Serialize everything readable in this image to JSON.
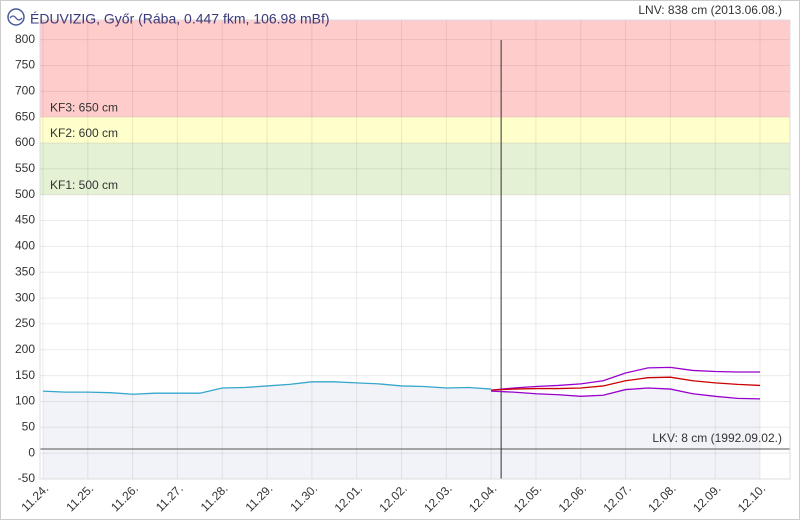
{
  "chart_data": {
    "type": "line",
    "title": "ÉDUVIZIG, Győr (Rába, 0.447 fkm, 106.98 mBf)",
    "categories": [
      "11.24.",
      null,
      "11.25.",
      null,
      "11.26.",
      null,
      "11.27.",
      null,
      "11.28.",
      null,
      "11.29.",
      null,
      "11.30.",
      null,
      "12.01.",
      null,
      "12.02.",
      null,
      "12.03.",
      null,
      "12.04.",
      null,
      "12.05.",
      null,
      "12.06.",
      null,
      "12.07.",
      null,
      "12.08.",
      null,
      "12.09.",
      null,
      "12.10."
    ],
    "series": [
      {
        "color": "#35a6cc",
        "fill": true,
        "values": [
          120,
          118,
          118,
          117,
          114,
          116,
          116,
          116,
          126,
          127,
          130,
          133,
          138,
          138,
          136,
          134,
          130,
          129,
          126,
          127,
          124,
          null,
          null,
          null,
          null,
          null,
          null,
          null,
          null,
          null,
          null,
          null,
          null
        ]
      },
      {
        "color": "#9900cc",
        "fill": false,
        "values": [
          null,
          null,
          null,
          null,
          null,
          null,
          null,
          null,
          null,
          null,
          null,
          null,
          null,
          null,
          null,
          null,
          null,
          null,
          null,
          null,
          122,
          126,
          129,
          131,
          134,
          140,
          155,
          165,
          166,
          160,
          158,
          157,
          157
        ]
      },
      {
        "color": "#cc0000",
        "fill": false,
        "values": [
          null,
          null,
          null,
          null,
          null,
          null,
          null,
          null,
          null,
          null,
          null,
          null,
          null,
          null,
          null,
          null,
          null,
          null,
          null,
          null,
          122,
          124,
          125,
          125,
          126,
          130,
          140,
          146,
          147,
          140,
          136,
          133,
          131
        ]
      },
      {
        "color": "#9900cc",
        "fill": true,
        "values": [
          null,
          null,
          null,
          null,
          null,
          null,
          null,
          null,
          null,
          null,
          null,
          null,
          null,
          null,
          null,
          null,
          null,
          null,
          null,
          null,
          120,
          118,
          115,
          113,
          110,
          112,
          123,
          126,
          124,
          115,
          110,
          106,
          105
        ]
      }
    ],
    "zones": [
      {
        "label": "KF3: 650 cm",
        "from": 650,
        "to": 838,
        "color": "#ffcccc"
      },
      {
        "label": "KF2: 600 cm",
        "from": 600,
        "to": 650,
        "color": "#ffffcc"
      },
      {
        "label": "KF1: 500 cm",
        "from": 500,
        "to": 600,
        "color": "#e4f1d4"
      }
    ],
    "lnv": {
      "label": "LNV: 838 cm (2013.06.08.)",
      "value": 838
    },
    "lkv": {
      "label": "LKV: 8 cm (1992.09.02.)",
      "value": 8
    },
    "ylim": [
      -50,
      838
    ],
    "yticks": [
      -50,
      0,
      50,
      100,
      150,
      200,
      250,
      300,
      350,
      400,
      450,
      500,
      550,
      600,
      650,
      700,
      750,
      800
    ],
    "grid": true
  }
}
